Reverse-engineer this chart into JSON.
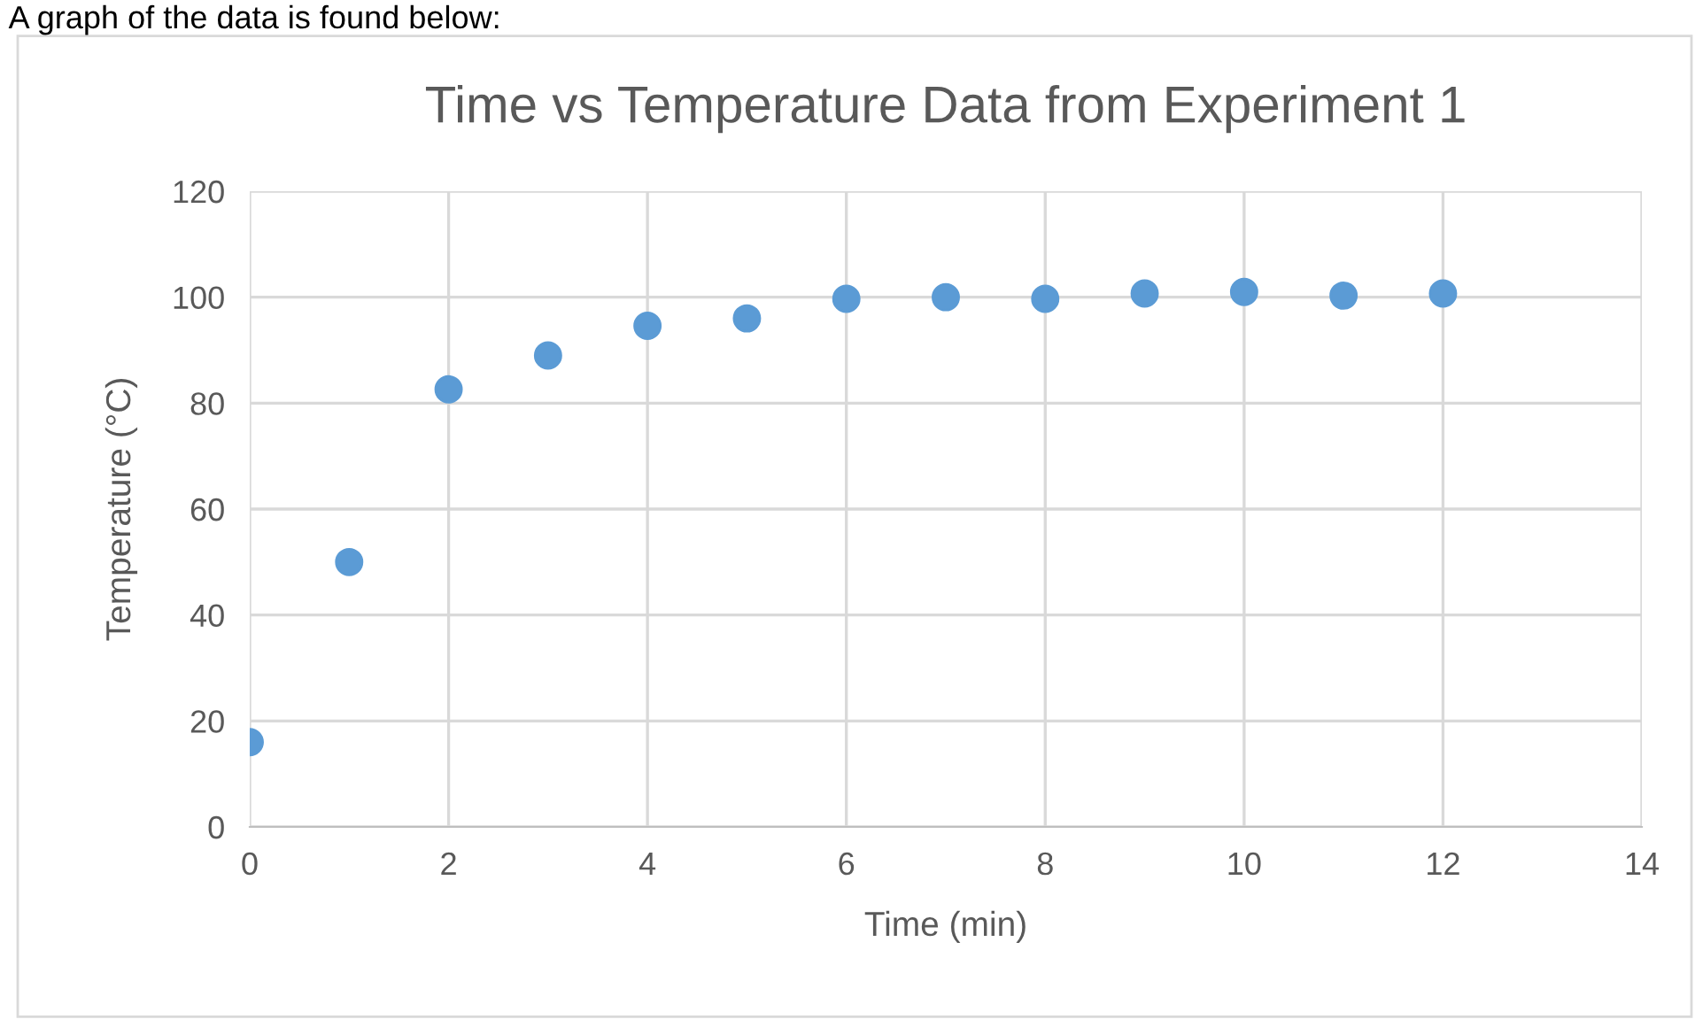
{
  "chart_data": {
    "type": "scatter",
    "title": "Time vs Temperature Data from Experiment 1",
    "xlabel": "Time (min)",
    "ylabel": "Temperature (°C)",
    "annotations": [
      "A graph of the data is found below:"
    ],
    "x": [
      0,
      1,
      2,
      3,
      4,
      5,
      6,
      7,
      8,
      9,
      10,
      11,
      12
    ],
    "series": [
      {
        "color": "#5b9bd5",
        "values": [
          16,
          50,
          82.6,
          89,
          94.6,
          96,
          99.7,
          100,
          99.7,
          100.7,
          101,
          100.3,
          100.7
        ]
      }
    ],
    "xlim": [
      0,
      14
    ],
    "xticks": [
      0,
      2,
      4,
      6,
      8,
      10,
      12,
      14
    ],
    "ylim": [
      0,
      120
    ],
    "yticks": [
      0,
      20,
      40,
      60,
      80,
      100,
      120
    ],
    "grid": true,
    "marker": "circle"
  }
}
